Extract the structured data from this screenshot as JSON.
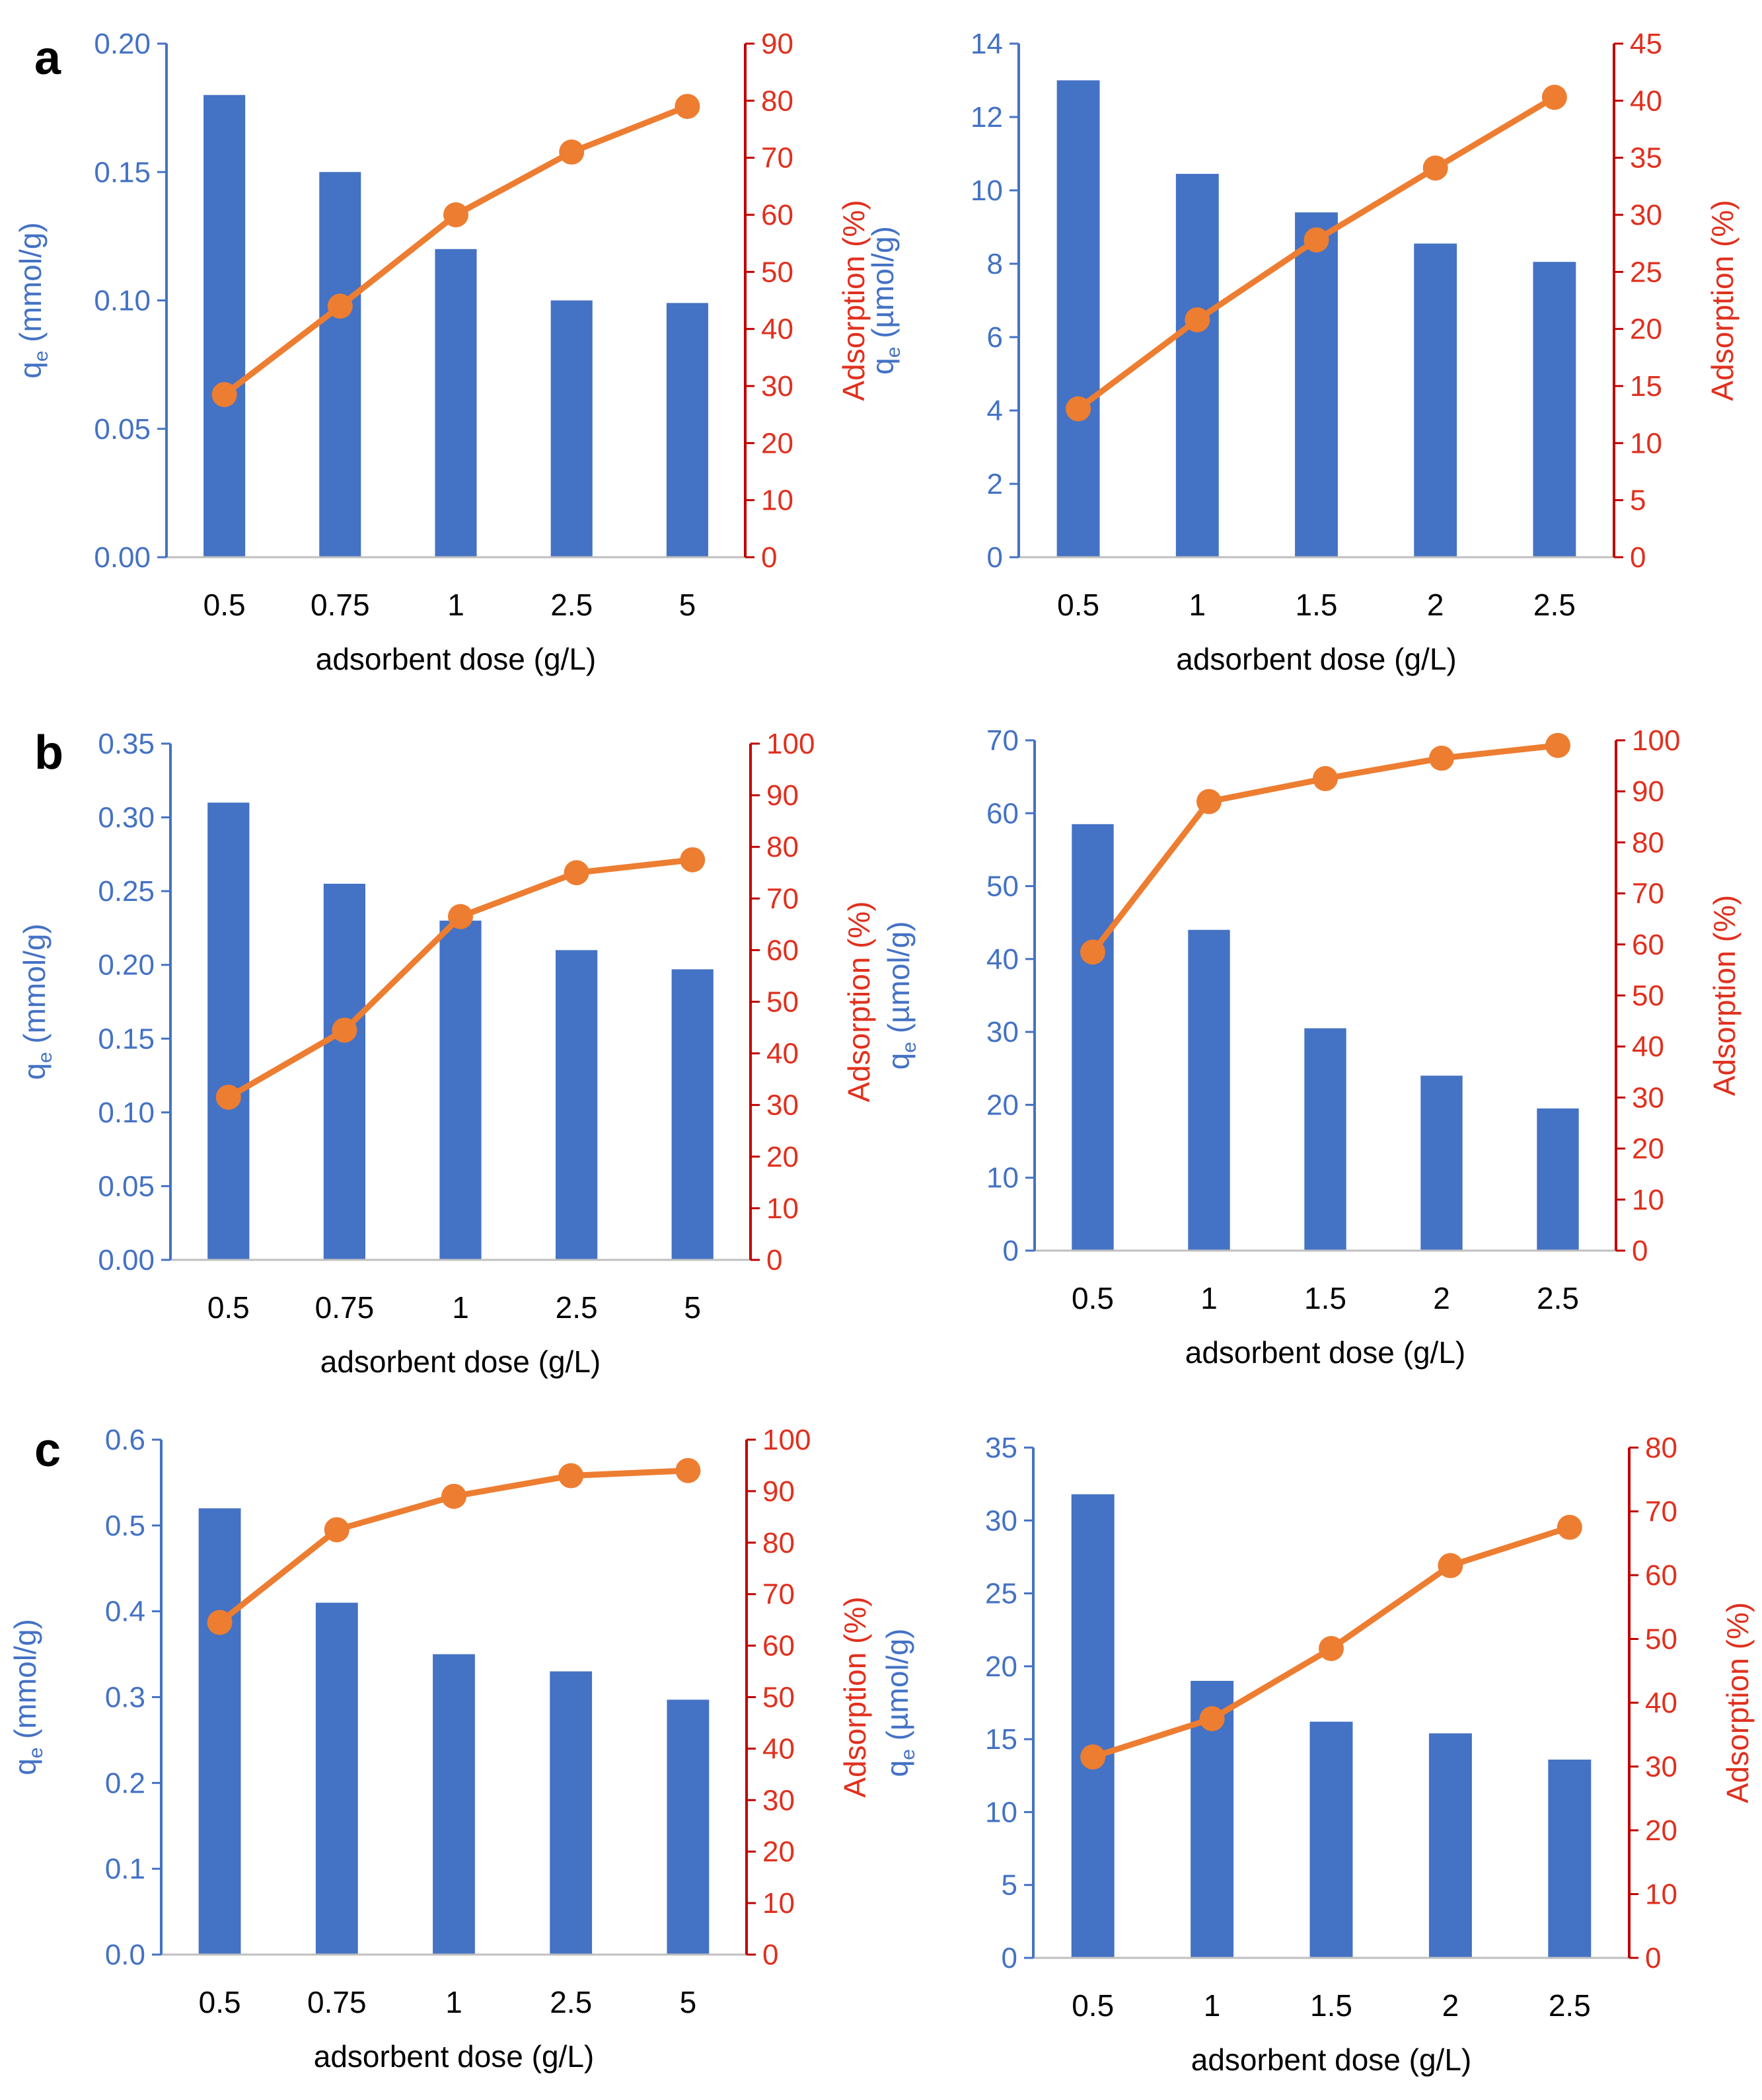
{
  "colors": {
    "bar": "#4472C4",
    "line": "#ED7D31",
    "left_axis": "#4472C4",
    "right_axis": "#C00000",
    "right_tick_text": "#E0301E"
  },
  "panel_labels": [
    "a",
    "b",
    "c"
  ],
  "chart_data": [
    {
      "type": "bar+line",
      "panel": "a",
      "categories": [
        "0.5",
        "0.75",
        "1",
        "2.5",
        "5"
      ],
      "series": [
        {
          "name": "qe",
          "type": "bar",
          "axis": "left",
          "values": [
            0.18,
            0.15,
            0.12,
            0.1,
            0.099
          ]
        },
        {
          "name": "Adsorption",
          "type": "line",
          "axis": "right",
          "values": [
            28.5,
            44,
            60,
            71,
            79
          ]
        }
      ],
      "xlabel": "adsorbent dose (g/L)",
      "ylabel_left": "qe (mmol/g)",
      "ylabel_right": "Adsorption (%)",
      "yticks_left": [
        "0.00",
        "0.05",
        "0.10",
        "0.15",
        "0.20"
      ],
      "yticks_right": [
        "0",
        "10",
        "20",
        "30",
        "40",
        "50",
        "60",
        "70",
        "80",
        "90"
      ],
      "ylim_left": [
        0,
        0.2
      ],
      "ylim_right": [
        0,
        90
      ]
    },
    {
      "type": "bar+line",
      "panel": "a",
      "categories": [
        "0.5",
        "1",
        "1.5",
        "2",
        "2.5"
      ],
      "series": [
        {
          "name": "qe",
          "type": "bar",
          "axis": "left",
          "values": [
            13,
            10.45,
            9.4,
            8.55,
            8.05
          ]
        },
        {
          "name": "Adsorption",
          "type": "line",
          "axis": "right",
          "values": [
            13,
            20.8,
            27.8,
            34.1,
            40.3
          ]
        }
      ],
      "xlabel": "adsorbent dose (g/L)",
      "ylabel_left": "qe (µmol/g)",
      "ylabel_right": "Adsorption (%)",
      "yticks_left": [
        "0",
        "2",
        "4",
        "6",
        "8",
        "10",
        "12",
        "14"
      ],
      "yticks_right": [
        "0",
        "5",
        "10",
        "15",
        "20",
        "25",
        "30",
        "35",
        "40",
        "45"
      ],
      "ylim_left": [
        0,
        14
      ],
      "ylim_right": [
        0,
        45
      ]
    },
    {
      "type": "bar+line",
      "panel": "b",
      "categories": [
        "0.5",
        "0.75",
        "1",
        "2.5",
        "5"
      ],
      "series": [
        {
          "name": "qe",
          "type": "bar",
          "axis": "left",
          "values": [
            0.31,
            0.255,
            0.23,
            0.21,
            0.197
          ]
        },
        {
          "name": "Adsorption",
          "type": "line",
          "axis": "right",
          "values": [
            31.5,
            44.5,
            66.5,
            75,
            77.5
          ]
        }
      ],
      "xlabel": "adsorbent dose (g/L)",
      "ylabel_left": "qe (mmol/g)",
      "ylabel_right": "Adsorption (%)",
      "yticks_left": [
        "0.00",
        "0.05",
        "0.10",
        "0.15",
        "0.20",
        "0.25",
        "0.30",
        "0.35"
      ],
      "yticks_right": [
        "0",
        "10",
        "20",
        "30",
        "40",
        "50",
        "60",
        "70",
        "80",
        "90",
        "100"
      ],
      "ylim_left": [
        0,
        0.35
      ],
      "ylim_right": [
        0,
        100
      ]
    },
    {
      "type": "bar+line",
      "panel": "b",
      "categories": [
        "0.5",
        "1",
        "1.5",
        "2",
        "2.5"
      ],
      "series": [
        {
          "name": "qe",
          "type": "bar",
          "axis": "left",
          "values": [
            58.5,
            44,
            30.5,
            24,
            19.5
          ]
        },
        {
          "name": "Adsorption",
          "type": "line",
          "axis": "right",
          "values": [
            58.5,
            88,
            92.5,
            96.5,
            99
          ]
        }
      ],
      "xlabel": "adsorbent dose (g/L)",
      "ylabel_left": "qe (µmol/g)",
      "ylabel_right": "Adsorption (%)",
      "yticks_left": [
        "0",
        "10",
        "20",
        "30",
        "40",
        "50",
        "60",
        "70"
      ],
      "yticks_right": [
        "0",
        "10",
        "20",
        "30",
        "40",
        "50",
        "60",
        "70",
        "80",
        "90",
        "100"
      ],
      "ylim_left": [
        0,
        70
      ],
      "ylim_right": [
        0,
        100
      ]
    },
    {
      "type": "bar+line",
      "panel": "c",
      "categories": [
        "0.5",
        "0.75",
        "1",
        "2.5",
        "5"
      ],
      "series": [
        {
          "name": "qe",
          "type": "bar",
          "axis": "left",
          "values": [
            0.52,
            0.41,
            0.35,
            0.33,
            0.297
          ]
        },
        {
          "name": "Adsorption",
          "type": "line",
          "axis": "right",
          "values": [
            64.5,
            82.5,
            89,
            93,
            94
          ]
        }
      ],
      "xlabel": "adsorbent dose (g/L)",
      "ylabel_left": "qe (mmol/g)",
      "ylabel_right": "Adsorption (%)",
      "yticks_left": [
        "0.0",
        "0.1",
        "0.2",
        "0.3",
        "0.4",
        "0.5",
        "0.6"
      ],
      "yticks_right": [
        "0",
        "10",
        "20",
        "30",
        "40",
        "50",
        "60",
        "70",
        "80",
        "90",
        "100"
      ],
      "ylim_left": [
        0,
        0.6
      ],
      "ylim_right": [
        0,
        100
      ]
    },
    {
      "type": "bar+line",
      "panel": "c",
      "categories": [
        "0.5",
        "1",
        "1.5",
        "2",
        "2.5"
      ],
      "series": [
        {
          "name": "qe",
          "type": "bar",
          "axis": "left",
          "values": [
            31.8,
            19,
            16.2,
            15.4,
            13.6
          ]
        },
        {
          "name": "Adsorption",
          "type": "line",
          "axis": "right",
          "values": [
            31.5,
            37.5,
            48.5,
            61.5,
            67.5
          ]
        }
      ],
      "xlabel": "adsorbent dose (g/L)",
      "ylabel_left": "qe (µmol/g)",
      "ylabel_right": "Adsorption (%)",
      "yticks_left": [
        "0",
        "5",
        "10",
        "15",
        "20",
        "25",
        "30",
        "35"
      ],
      "yticks_right": [
        "0",
        "10",
        "20",
        "30",
        "40",
        "50",
        "60",
        "70",
        "80"
      ],
      "ylim_left": [
        0,
        35
      ],
      "ylim_right": [
        0,
        80
      ]
    }
  ]
}
